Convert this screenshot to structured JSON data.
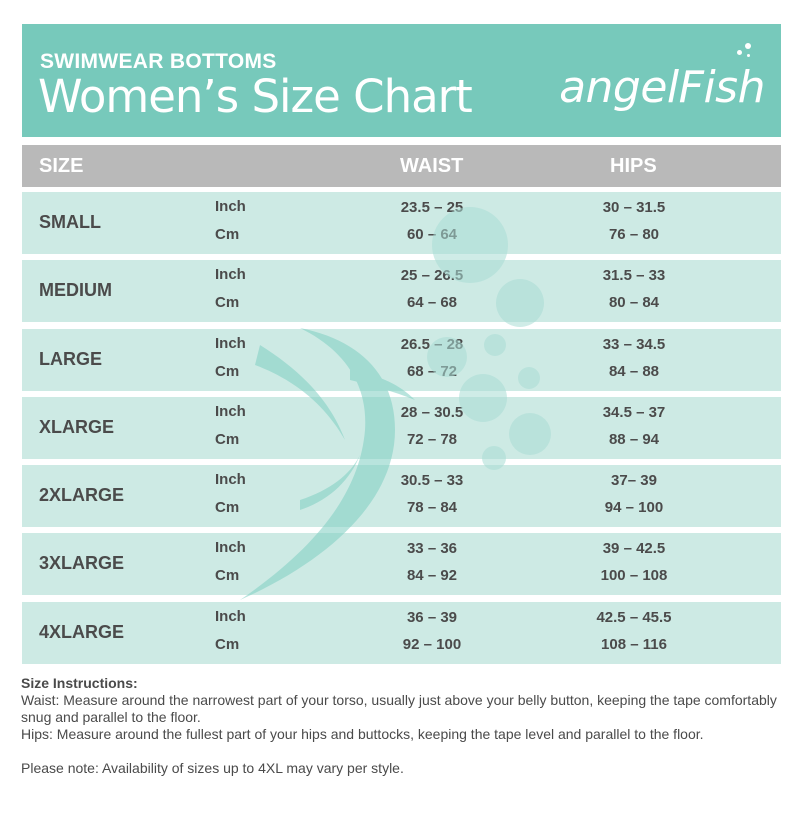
{
  "header": {
    "subtitle": "SWIMWEAR BOTTOMS",
    "title": "Women’s Size Chart",
    "logo": "angelFish"
  },
  "table": {
    "columns": [
      "SIZE",
      "WAIST",
      "HIPS"
    ],
    "unit_inch": "Inch",
    "unit_cm": "Cm",
    "rows": [
      {
        "size": "SMALL",
        "waist_in": "23.5 – 25",
        "waist_cm": "60 – 64",
        "hips_in": "30 – 31.5",
        "hips_cm": "76 – 80"
      },
      {
        "size": "MEDIUM",
        "waist_in": "25 – 26.5",
        "waist_cm": "64 – 68",
        "hips_in": "31.5 – 33",
        "hips_cm": "80 – 84"
      },
      {
        "size": "LARGE",
        "waist_in": "26.5 – 28",
        "waist_cm": "68 – 72",
        "hips_in": "33 – 34.5",
        "hips_cm": "84 – 88"
      },
      {
        "size": "XLARGE",
        "waist_in": "28 – 30.5",
        "waist_cm": "72 – 78",
        "hips_in": "34.5 – 37",
        "hips_cm": "88 – 94"
      },
      {
        "size": "2XLARGE",
        "waist_in": "30.5 – 33",
        "waist_cm": "78  – 84",
        "hips_in": "37– 39",
        "hips_cm": "94 – 100"
      },
      {
        "size": "3XLARGE",
        "waist_in": "33 – 36",
        "waist_cm": "84 – 92",
        "hips_in": "39 – 42.5",
        "hips_cm": "100 – 108"
      },
      {
        "size": "4XLARGE",
        "waist_in": "36 – 39",
        "waist_cm": "92 – 100",
        "hips_in": "42.5 – 45.5",
        "hips_cm": "108 – 116"
      }
    ]
  },
  "notes": {
    "title": "Size Instructions:",
    "waist": "Waist: Measure around the narrowest part of your torso, usually just above your belly button, keeping the tape comfortably snug and parallel to the floor.",
    "hips": "Hips: Measure around the fullest part of your hips and buttocks, keeping the tape level and parallel to the floor.",
    "availability": "Please note: Availability of sizes up to 4XL may vary per style."
  },
  "colors": {
    "banner": "#77c9bb",
    "header_row": "#b9b9b9",
    "row_fill": "#cdeae4",
    "text": "#4b4b4b"
  }
}
